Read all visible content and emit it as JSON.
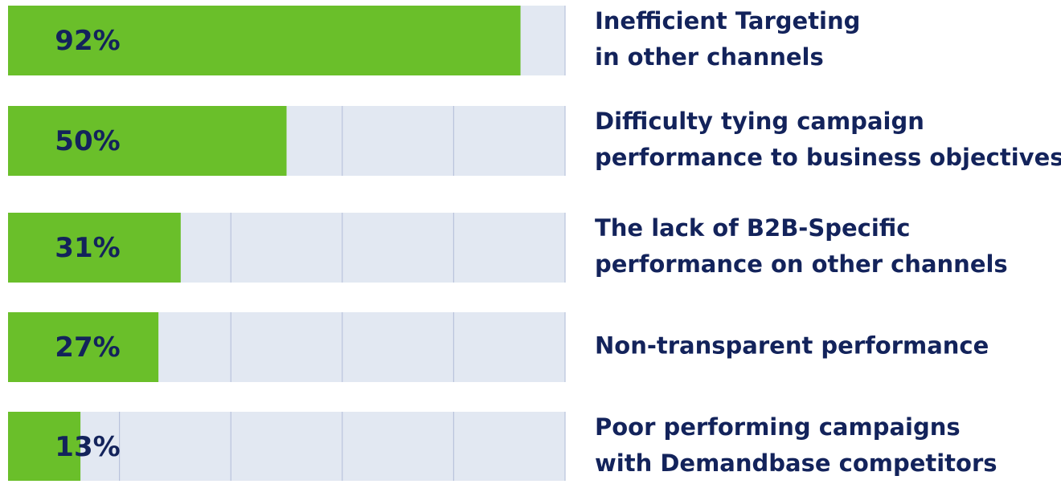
{
  "chart_data": {
    "type": "bar",
    "orientation": "horizontal",
    "categories": [
      [
        "Inefficient Targeting",
        "in other channels"
      ],
      [
        "Difficulty tying campaign",
        "performance to business objectives"
      ],
      [
        "The lack of B2B-Specific",
        "performance on other channels"
      ],
      [
        "Non-transparent performance"
      ],
      [
        "Poor performing campaigns",
        "with Demandbase competitors"
      ]
    ],
    "values": [
      92,
      50,
      31,
      27,
      13
    ],
    "value_labels": [
      "92%",
      "50%",
      "31%",
      "27%",
      "13%"
    ],
    "color": "#6abf2a",
    "track_color": "#e2e8f2",
    "xlim": [
      0,
      100
    ],
    "xticks": [
      20,
      40,
      60,
      80,
      100
    ],
    "grid": true
  }
}
